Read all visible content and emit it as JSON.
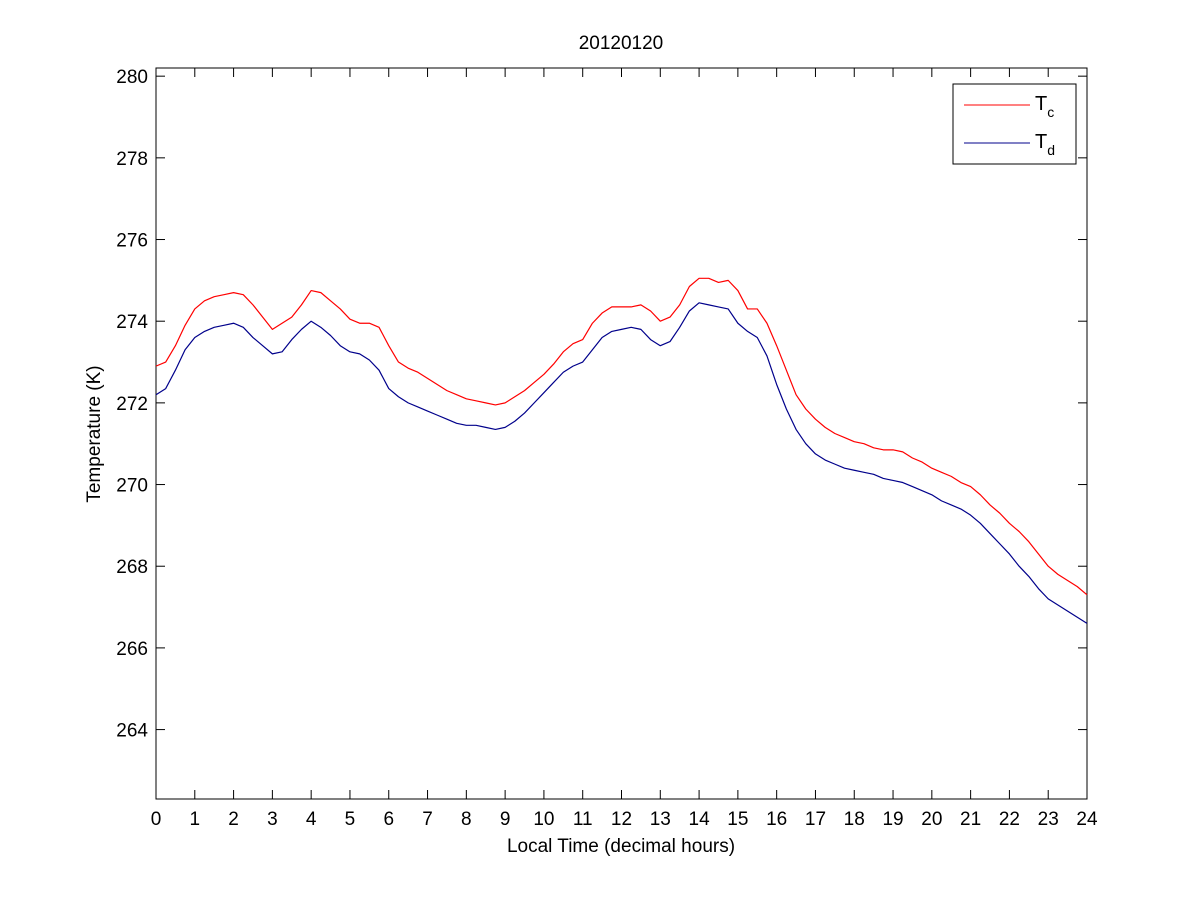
{
  "chart_data": {
    "type": "line",
    "title": "20120120",
    "xlabel": "Local Time (decimal hours)",
    "ylabel": "Temperature (K)",
    "xlim": [
      0,
      24
    ],
    "ylim": [
      262.3,
      280.2
    ],
    "xticks": [
      0,
      1,
      2,
      3,
      4,
      5,
      6,
      7,
      8,
      9,
      10,
      11,
      12,
      13,
      14,
      15,
      16,
      17,
      18,
      19,
      20,
      21,
      22,
      23,
      24
    ],
    "yticks": [
      264,
      266,
      268,
      270,
      272,
      274,
      276,
      278,
      280
    ],
    "grid": false,
    "legend_position": "top-right",
    "colors": {
      "Tc": "#ff0000",
      "Td": "#00008b"
    },
    "legend": [
      {
        "main": "T",
        "sub": "c"
      },
      {
        "main": "T",
        "sub": "d"
      }
    ],
    "series": [
      {
        "key": "Tc",
        "x": [
          0,
          0.25,
          0.5,
          0.75,
          1,
          1.25,
          1.5,
          1.75,
          2,
          2.25,
          2.5,
          2.75,
          3,
          3.25,
          3.5,
          3.75,
          4,
          4.25,
          4.5,
          4.75,
          5,
          5.25,
          5.5,
          5.75,
          6,
          6.25,
          6.5,
          6.75,
          7,
          7.25,
          7.5,
          7.75,
          8,
          8.25,
          8.5,
          8.75,
          9,
          9.25,
          9.5,
          9.75,
          10,
          10.25,
          10.5,
          10.75,
          11,
          11.25,
          11.5,
          11.75,
          12,
          12.25,
          12.5,
          12.75,
          13,
          13.25,
          13.5,
          13.75,
          14,
          14.25,
          14.5,
          14.75,
          15,
          15.25,
          15.5,
          15.75,
          16,
          16.25,
          16.5,
          16.75,
          17,
          17.25,
          17.5,
          17.75,
          18,
          18.25,
          18.5,
          18.75,
          19,
          19.25,
          19.5,
          19.75,
          20,
          20.25,
          20.5,
          20.75,
          21,
          21.25,
          21.5,
          21.75,
          22,
          22.25,
          22.5,
          22.75,
          23,
          23.25,
          23.5,
          23.75,
          24
        ],
        "values": [
          272.9,
          273.0,
          273.4,
          273.9,
          274.3,
          274.5,
          274.6,
          274.65,
          274.7,
          274.65,
          274.4,
          274.1,
          273.8,
          273.95,
          274.1,
          274.4,
          274.75,
          274.7,
          274.5,
          274.3,
          274.05,
          273.95,
          273.95,
          273.85,
          273.4,
          273.0,
          272.85,
          272.75,
          272.6,
          272.45,
          272.3,
          272.2,
          272.1,
          272.05,
          272.0,
          271.95,
          272.0,
          272.15,
          272.3,
          272.5,
          272.7,
          272.95,
          273.25,
          273.45,
          273.55,
          273.95,
          274.2,
          274.35,
          274.35,
          274.35,
          274.4,
          274.25,
          274.0,
          274.1,
          274.4,
          274.85,
          275.05,
          275.05,
          274.95,
          275.0,
          274.75,
          274.3,
          274.3,
          273.95,
          273.4,
          272.8,
          272.2,
          271.85,
          271.6,
          271.4,
          271.25,
          271.15,
          271.05,
          271.0,
          270.9,
          270.85,
          270.85,
          270.8,
          270.65,
          270.55,
          270.4,
          270.3,
          270.2,
          270.05,
          269.95,
          269.75,
          269.5,
          269.3,
          269.05,
          268.85,
          268.6,
          268.3,
          268.0,
          267.8,
          267.65,
          267.5,
          267.3
        ]
      },
      {
        "key": "Td",
        "x": [
          0,
          0.25,
          0.5,
          0.75,
          1,
          1.25,
          1.5,
          1.75,
          2,
          2.25,
          2.5,
          2.75,
          3,
          3.25,
          3.5,
          3.75,
          4,
          4.25,
          4.5,
          4.75,
          5,
          5.25,
          5.5,
          5.75,
          6,
          6.25,
          6.5,
          6.75,
          7,
          7.25,
          7.5,
          7.75,
          8,
          8.25,
          8.5,
          8.75,
          9,
          9.25,
          9.5,
          9.75,
          10,
          10.25,
          10.5,
          10.75,
          11,
          11.25,
          11.5,
          11.75,
          12,
          12.25,
          12.5,
          12.75,
          13,
          13.25,
          13.5,
          13.75,
          14,
          14.25,
          14.5,
          14.75,
          15,
          15.25,
          15.5,
          15.75,
          16,
          16.25,
          16.5,
          16.75,
          17,
          17.25,
          17.5,
          17.75,
          18,
          18.25,
          18.5,
          18.75,
          19,
          19.25,
          19.5,
          19.75,
          20,
          20.25,
          20.5,
          20.75,
          21,
          21.25,
          21.5,
          21.75,
          22,
          22.25,
          22.5,
          22.75,
          23,
          23.25,
          23.5,
          23.75,
          24
        ],
        "values": [
          272.2,
          272.35,
          272.8,
          273.3,
          273.6,
          273.75,
          273.85,
          273.9,
          273.95,
          273.85,
          273.6,
          273.4,
          273.2,
          273.25,
          273.55,
          273.8,
          274.0,
          273.85,
          273.65,
          273.4,
          273.25,
          273.2,
          273.05,
          272.8,
          272.35,
          272.15,
          272.0,
          271.9,
          271.8,
          271.7,
          271.6,
          271.5,
          271.45,
          271.45,
          271.4,
          271.35,
          271.4,
          271.55,
          271.75,
          272.0,
          272.25,
          272.5,
          272.75,
          272.9,
          273.0,
          273.3,
          273.6,
          273.75,
          273.8,
          273.85,
          273.8,
          273.55,
          273.4,
          273.5,
          273.85,
          274.25,
          274.45,
          274.4,
          274.35,
          274.3,
          273.95,
          273.75,
          273.6,
          273.15,
          272.45,
          271.85,
          271.35,
          271.0,
          270.75,
          270.6,
          270.5,
          270.4,
          270.35,
          270.3,
          270.25,
          270.15,
          270.1,
          270.05,
          269.95,
          269.85,
          269.75,
          269.6,
          269.5,
          269.4,
          269.25,
          269.05,
          268.8,
          268.55,
          268.3,
          268.0,
          267.75,
          267.45,
          267.2,
          267.05,
          266.9,
          266.75,
          266.6
        ]
      }
    ]
  }
}
